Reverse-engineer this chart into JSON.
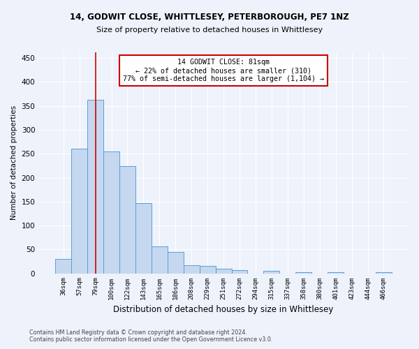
{
  "title1": "14, GODWIT CLOSE, WHITTLESEY, PETERBOROUGH, PE7 1NZ",
  "title2": "Size of property relative to detached houses in Whittlesey",
  "xlabel": "Distribution of detached houses by size in Whittlesey",
  "ylabel": "Number of detached properties",
  "footnote1": "Contains HM Land Registry data © Crown copyright and database right 2024.",
  "footnote2": "Contains public sector information licensed under the Open Government Licence v3.0.",
  "categories": [
    "36sqm",
    "57sqm",
    "79sqm",
    "100sqm",
    "122sqm",
    "143sqm",
    "165sqm",
    "186sqm",
    "208sqm",
    "229sqm",
    "251sqm",
    "272sqm",
    "294sqm",
    "315sqm",
    "337sqm",
    "358sqm",
    "380sqm",
    "401sqm",
    "423sqm",
    "444sqm",
    "466sqm"
  ],
  "values": [
    30,
    260,
    363,
    255,
    224,
    147,
    57,
    45,
    17,
    15,
    10,
    7,
    0,
    5,
    0,
    3,
    0,
    2,
    0,
    0,
    2
  ],
  "bar_color": "#c5d8f0",
  "bar_edge_color": "#5a9fd4",
  "vline_x_index": 2,
  "vline_color": "#cc0000",
  "annotation_line1": "14 GODWIT CLOSE: 81sqm",
  "annotation_line2": "← 22% of detached houses are smaller (310)",
  "annotation_line3": "77% of semi-detached houses are larger (1,104) →",
  "annotation_box_color": "#ffffff",
  "annotation_box_edge_color": "#cc0000",
  "ylim": [
    0,
    462
  ],
  "yticks": [
    0,
    50,
    100,
    150,
    200,
    250,
    300,
    350,
    400,
    450
  ],
  "background_color": "#eef2fb",
  "plot_bg_color": "#eef2fb"
}
